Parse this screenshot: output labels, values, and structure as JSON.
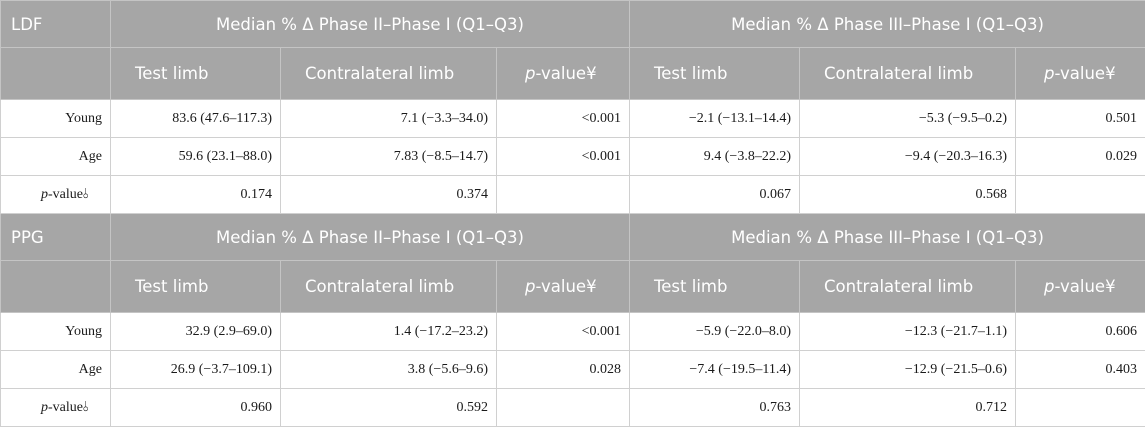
{
  "tables": [
    {
      "section": "LDF",
      "group_headers": [
        "Median % Δ Phase II–Phase I (Q1–Q3)",
        "Median % Δ Phase III–Phase I (Q1–Q3)"
      ],
      "col_headers": {
        "test": "Test limb",
        "contra": "Contralateral limb",
        "p_italic": "p",
        "p_rest": "-value¥"
      },
      "rows": [
        {
          "label": "Young",
          "g1_test": "83.6 (47.6–117.3)",
          "g1_contra": "7.1 (−3.3–34.0)",
          "g1_p": "<0.001",
          "g2_test": "−2.1 (−13.1–14.4)",
          "g2_contra": "−5.3 (−9.5–0.2)",
          "g2_p": "0.501"
        },
        {
          "label": "Age",
          "g1_test": "59.6 (23.1–88.0)",
          "g1_contra": "7.83 (−8.5–14.7)",
          "g1_p": "<0.001",
          "g2_test": "9.4 (−3.8–22.2)",
          "g2_contra": "−9.4 (−20.3–16.3)",
          "g2_p": "0.029"
        }
      ],
      "prow": {
        "label_italic": "p",
        "label_rest": "-value⫰",
        "g1_test": "0.174",
        "g1_contra": "0.374",
        "g2_test": "0.067",
        "g2_contra": "0.568"
      }
    },
    {
      "section": "PPG",
      "group_headers": [
        "Median % Δ Phase II–Phase I (Q1–Q3)",
        "Median % Δ Phase III–Phase I (Q1–Q3)"
      ],
      "col_headers": {
        "test": "Test limb",
        "contra": "Contralateral limb",
        "p_italic": "p",
        "p_rest": "-value¥"
      },
      "rows": [
        {
          "label": "Young",
          "g1_test": "32.9 (2.9–69.0)",
          "g1_contra": "1.4 (−17.2–23.2)",
          "g1_p": "<0.001",
          "g2_test": "−5.9 (−22.0–8.0)",
          "g2_contra": "−12.3 (−21.7–1.1)",
          "g2_p": "0.606"
        },
        {
          "label": "Age",
          "g1_test": "26.9 (−3.7–109.1)",
          "g1_contra": "3.8 (−5.6–9.6)",
          "g1_p": "0.028",
          "g2_test": "−7.4 (−19.5–11.4)",
          "g2_contra": "−12.9 (−21.5–0.6)",
          "g2_p": "0.403"
        }
      ],
      "prow": {
        "label_italic": "p",
        "label_rest": "-value⫰",
        "g1_test": "0.960",
        "g1_contra": "0.592",
        "g2_test": "0.763",
        "g2_contra": "0.712"
      }
    }
  ]
}
